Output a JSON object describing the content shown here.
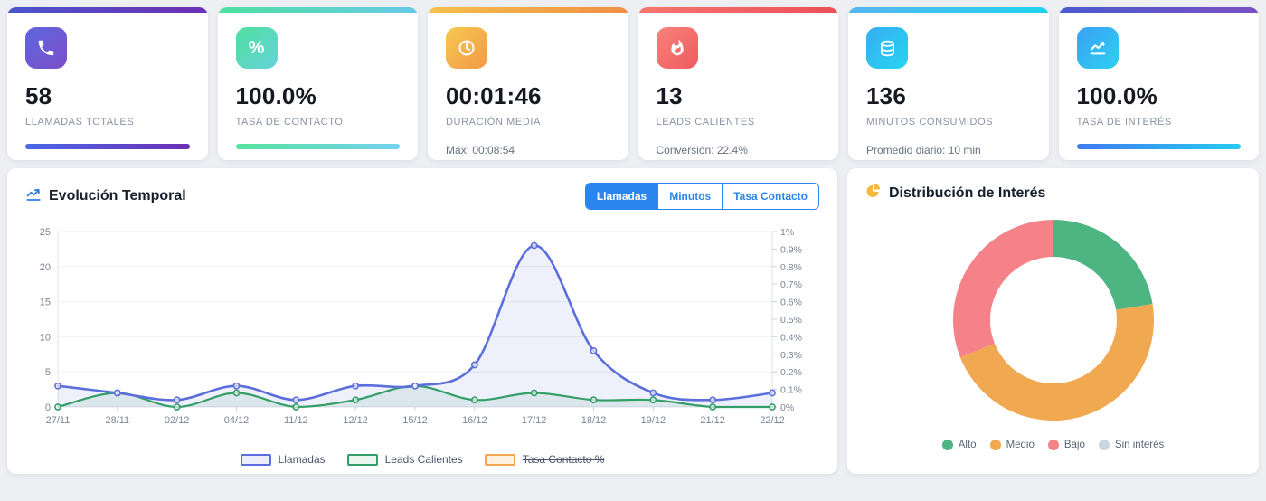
{
  "kpi_cards": [
    {
      "id": "llamadas-totales",
      "icon": "phone-icon",
      "value": "58",
      "label": "LLAMADAS TOTALES",
      "accent": [
        "#4a55cc",
        "#6d2fb5"
      ],
      "icon_bg": [
        "#5f66dd",
        "#7a4fc9"
      ],
      "progress": [
        "#4b68e8",
        "#6c2fb5"
      ]
    },
    {
      "id": "tasa-contacto",
      "icon": "percent-icon",
      "value": "100.0%",
      "label": "TASA DE CONTACTO",
      "accent": [
        "#4fe0a0",
        "#67c9e8"
      ],
      "icon_bg": [
        "#4fdf9e",
        "#66d3da"
      ],
      "progress": [
        "#55e39e",
        "#74d2ef"
      ]
    },
    {
      "id": "duracion-media",
      "icon": "clock-icon",
      "value": "00:01:46",
      "label": "DURACIÓN MEDIA",
      "accent": [
        "#f7c04c",
        "#ef8f44"
      ],
      "icon_bg": [
        "#f7c851",
        "#f29a45"
      ],
      "subtext": "Máx: 00:08:54"
    },
    {
      "id": "leads-calientes",
      "icon": "flame-icon",
      "value": "13",
      "label": "LEADS CALIENTES",
      "accent": [
        "#f5766f",
        "#ec4f58"
      ],
      "icon_bg": [
        "#f8827b",
        "#ef5a5e"
      ],
      "subtext": "Conversión: 22.4%"
    },
    {
      "id": "minutos-consumidos",
      "icon": "coins-icon",
      "value": "136",
      "label": "MINUTOS CONSUMIDOS",
      "accent": [
        "#57b6f2",
        "#1fd2ee"
      ],
      "icon_bg": [
        "#35aef2",
        "#27d4f0"
      ],
      "subtext": "Promedio diario: 10 min"
    },
    {
      "id": "tasa-interes",
      "icon": "chart-line-icon",
      "value": "100.0%",
      "label": "TASA DE INTERÉS",
      "accent": [
        "#4a5bd0",
        "#7a4fc0"
      ],
      "icon_bg": [
        "#3aa0f5",
        "#2fd0f0"
      ],
      "progress": [
        "#3f7bf0",
        "#27ccf0"
      ]
    }
  ],
  "panels": {
    "evolution": {
      "title": "Evolución Temporal",
      "title_icon": "line-chart-icon",
      "tabs": [
        {
          "label": "Llamadas",
          "active": true
        },
        {
          "label": "Minutos",
          "active": false
        },
        {
          "label": "Tasa Contacto",
          "active": false
        }
      ]
    },
    "interest": {
      "title": "Distribución de Interés",
      "title_icon": "pie-chart-icon"
    }
  },
  "chart_data": [
    {
      "type": "line",
      "title": "Evolución Temporal",
      "x": [
        "27/11",
        "28/11",
        "02/12",
        "04/12",
        "11/12",
        "12/12",
        "15/12",
        "16/12",
        "17/12",
        "18/12",
        "19/12",
        "21/12",
        "22/12"
      ],
      "series": [
        {
          "name": "Llamadas",
          "color": "#5b6edc",
          "area_fill": "rgba(91,110,220,0.10)",
          "swatch_fill": "#eceffb",
          "values": [
            3,
            2,
            1,
            3,
            1,
            3,
            3,
            6,
            23,
            8,
            2,
            1,
            2
          ],
          "disabled": false
        },
        {
          "name": "Leads Calientes",
          "color": "#339e66",
          "area_fill": "rgba(51,158,102,0.10)",
          "swatch_fill": "#e9f6ee",
          "values": [
            0,
            2,
            0,
            2,
            0,
            1,
            3,
            1,
            2,
            1,
            1,
            0,
            0
          ],
          "disabled": false
        },
        {
          "name": "Tasa Contacto %",
          "color": "#f0a84f",
          "swatch_fill": "#fdf2e0",
          "values": [],
          "disabled": true
        }
      ],
      "y_left": {
        "ticks_top_to_bottom": [
          25,
          20,
          15,
          10,
          5,
          0
        ],
        "max": 25,
        "min": 0
      },
      "y_right": {
        "ticks_top_to_bottom": [
          "1%",
          "0.9%",
          "0.8%",
          "0.7%",
          "0.6%",
          "0.5%",
          "0.4%",
          "0.3%",
          "0.2%",
          "0.1%",
          "0%"
        ]
      },
      "grid": true,
      "legend_position": "bottom"
    },
    {
      "type": "donut",
      "title": "Distribución de Interés",
      "labels": [
        "Alto",
        "Medio",
        "Bajo",
        "Sin interés"
      ],
      "values": [
        13,
        27,
        18,
        0
      ],
      "colors": [
        "#4cb582",
        "#f0a851",
        "#f58289",
        "#cbd5dd"
      ],
      "legend_position": "bottom"
    }
  ],
  "ui_colors": {
    "tab_blue": "#2b85ef",
    "grid_line": "#eef0f5",
    "axis_line": "#dfe3ea",
    "tick_label": "#7b8596",
    "page_background": "#edeff3"
  }
}
